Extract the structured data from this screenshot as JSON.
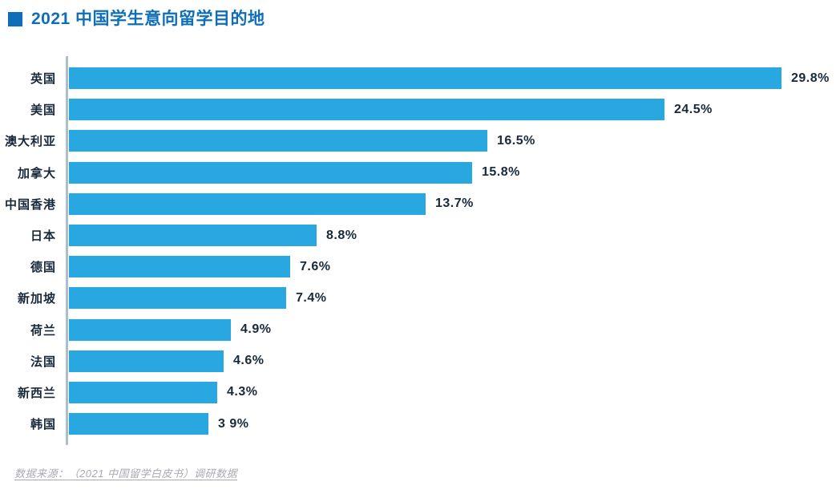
{
  "title": {
    "text": "2021 中国学生意向留学目的地"
  },
  "source": {
    "text": "数据来源：（2021 中国留学白皮书）调研数据"
  },
  "colors": {
    "title_blue": "#0e6eb8",
    "bar_blue": "#29a7e0",
    "text_navy": "#17293b",
    "axis_line": "#aabfce",
    "source_gray": "#a9a9b2",
    "background": "#ffffff"
  },
  "chart_data": {
    "type": "bar",
    "orientation": "horizontal",
    "title": "2021 中国学生意向留学目的地",
    "categories": [
      "英国",
      "美国",
      "澳大利亚",
      "加拿大",
      "中国香港",
      "日本",
      "德国",
      "新加坡",
      "荷兰",
      "法国",
      "新西兰",
      "韩国"
    ],
    "values": [
      29.8,
      24.5,
      16.5,
      15.8,
      13.7,
      8.8,
      7.6,
      7.4,
      4.9,
      4.6,
      4.3,
      3.9
    ],
    "value_labels": [
      "29.8%",
      "24.5%",
      "16.5%",
      "15.8%",
      "13.7%",
      "8.8%",
      "7.6%",
      "7.4%",
      "4.9%",
      "4.6%",
      "4.3%",
      "3 9%"
    ],
    "unit": "%",
    "xlim": [
      0,
      32
    ],
    "grid": false,
    "legend": false,
    "value_label_position": "end-of-bar",
    "annotation": "数据来源：（2021 中国留学白皮书）调研数据"
  }
}
